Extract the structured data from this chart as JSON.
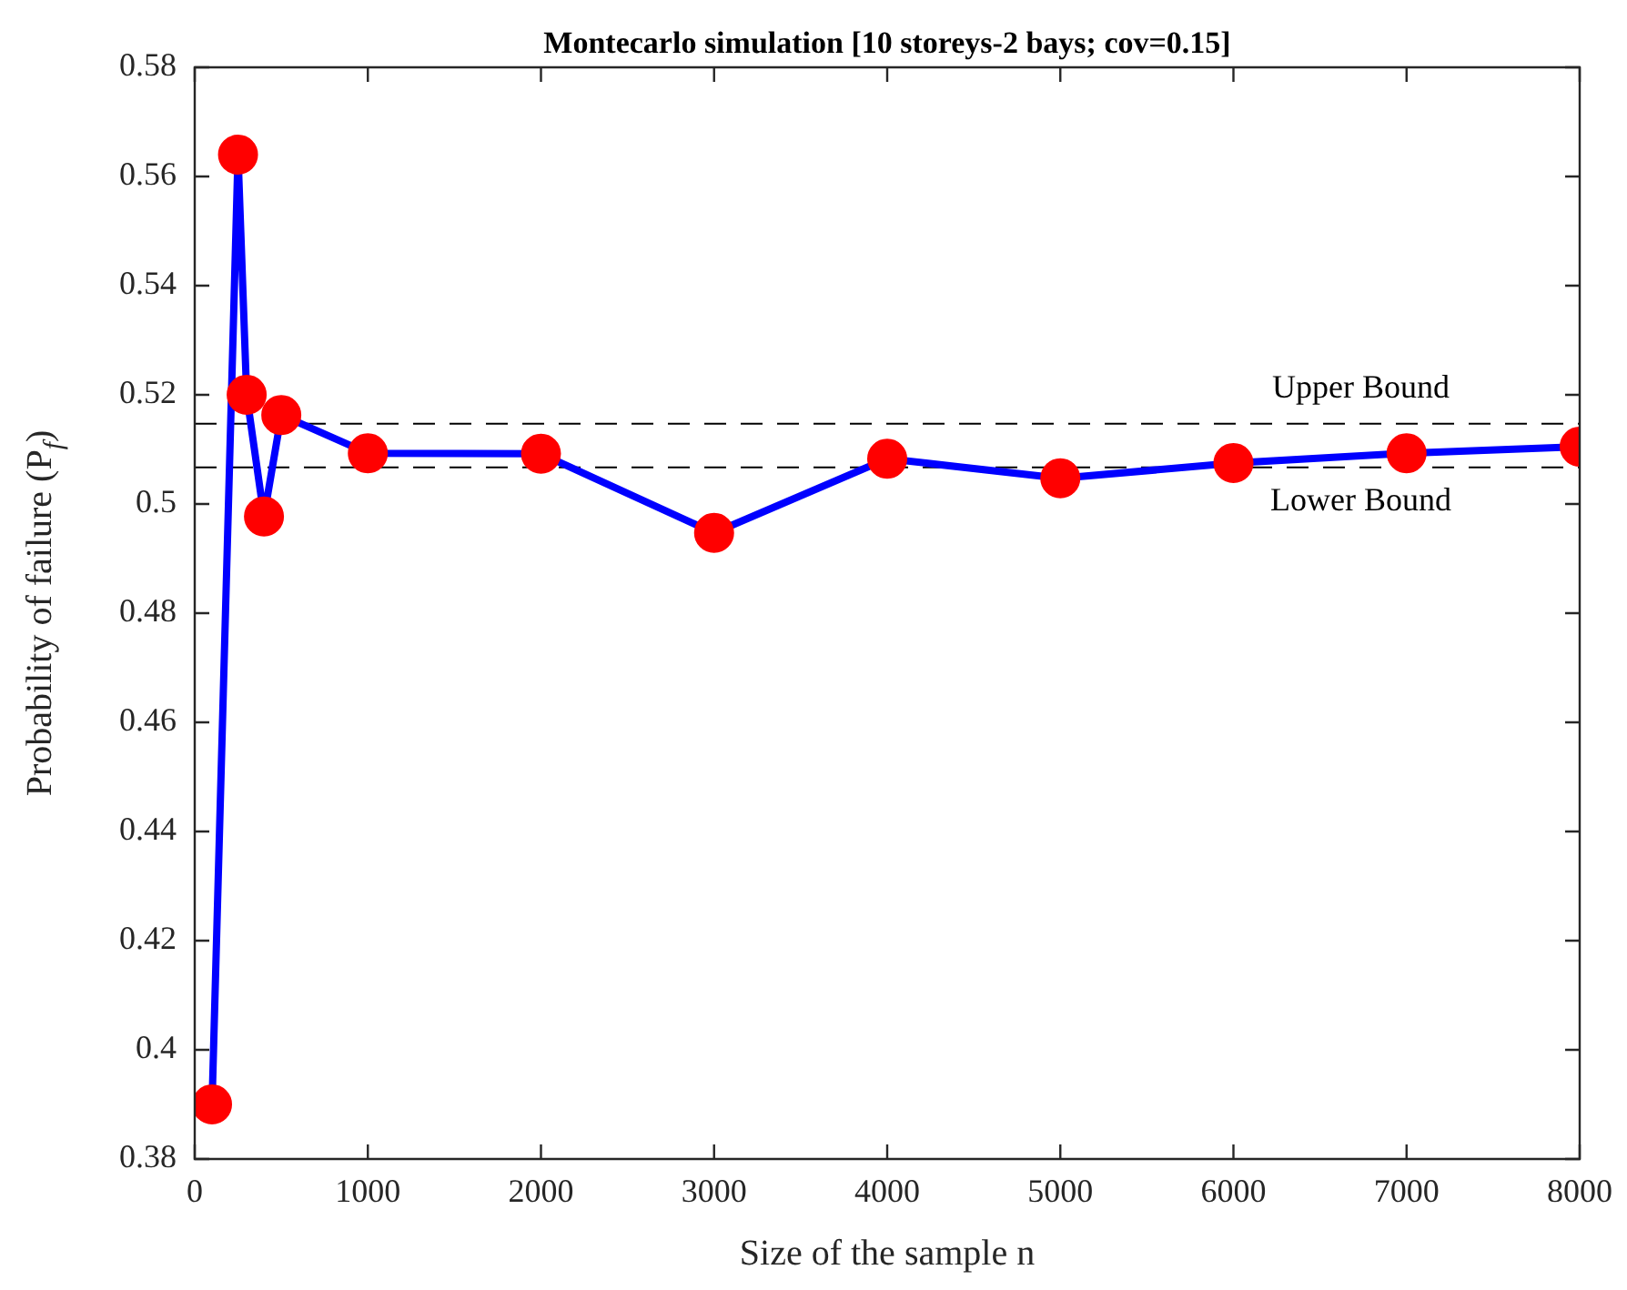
{
  "chart_data": {
    "type": "line",
    "title": "Montecarlo simulation [10 storeys-2 bays; cov=0.15]",
    "xlabel": "Size of the sample n",
    "ylabel": "Probability of failure (P$_{f}$)",
    "x": [
      100,
      250,
      300,
      400,
      500,
      1000,
      2000,
      3000,
      4000,
      5000,
      6000,
      7000,
      8000
    ],
    "series": [
      {
        "color": "#0000ff",
        "values": [
          0.39,
          0.564,
          0.52,
          0.4977,
          0.5163,
          0.5093,
          0.5092,
          0.4947,
          0.5083,
          0.5047,
          0.5075,
          0.5093,
          0.5105
        ]
      }
    ],
    "marker": "circle",
    "line_style": "solid",
    "grid": false,
    "legend": false,
    "xlim": [
      0,
      8000
    ],
    "xticks": [
      0,
      1000,
      2000,
      3000,
      4000,
      5000,
      6000,
      7000,
      8000
    ],
    "ylim": [
      0.38,
      0.58
    ],
    "yticks": [
      0.38,
      0.4,
      0.42,
      0.44,
      0.46,
      0.48,
      0.5,
      0.52,
      0.54,
      0.56,
      0.58
    ],
    "ref_lines": [
      {
        "axis": "y",
        "value": 0.5147,
        "label": "Upper Bound",
        "color": "#000000",
        "line_style": "dashed"
      },
      {
        "axis": "y",
        "value": 0.5067,
        "label": "Lower Bound",
        "color": "#000000",
        "line_style": "dashed"
      }
    ]
  }
}
